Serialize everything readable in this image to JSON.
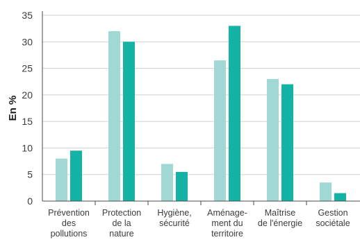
{
  "chart_data": {
    "type": "bar",
    "title": "",
    "xlabel": "",
    "ylabel": "En %",
    "ylim": [
      0,
      35
    ],
    "yticks": [
      0,
      5,
      10,
      15,
      20,
      25,
      30,
      35
    ],
    "grid": true,
    "legend": "none",
    "categories": [
      [
        "Prévention",
        "des",
        "pollutions"
      ],
      [
        "Protection",
        "de la",
        "nature"
      ],
      [
        "Hygiène,",
        "sécurité"
      ],
      [
        "Aménage-",
        "ment du",
        "territoire"
      ],
      [
        "Maîtrise",
        "de l'énergie"
      ],
      [
        "Gestion",
        "sociétale"
      ]
    ],
    "series": [
      {
        "values": [
          8,
          32,
          7,
          26.5,
          23,
          3.5
        ],
        "color": "#a2d8d4"
      },
      {
        "values": [
          9.5,
          30,
          5.5,
          33,
          22,
          1.5
        ],
        "color": "#14b3a6"
      }
    ]
  }
}
